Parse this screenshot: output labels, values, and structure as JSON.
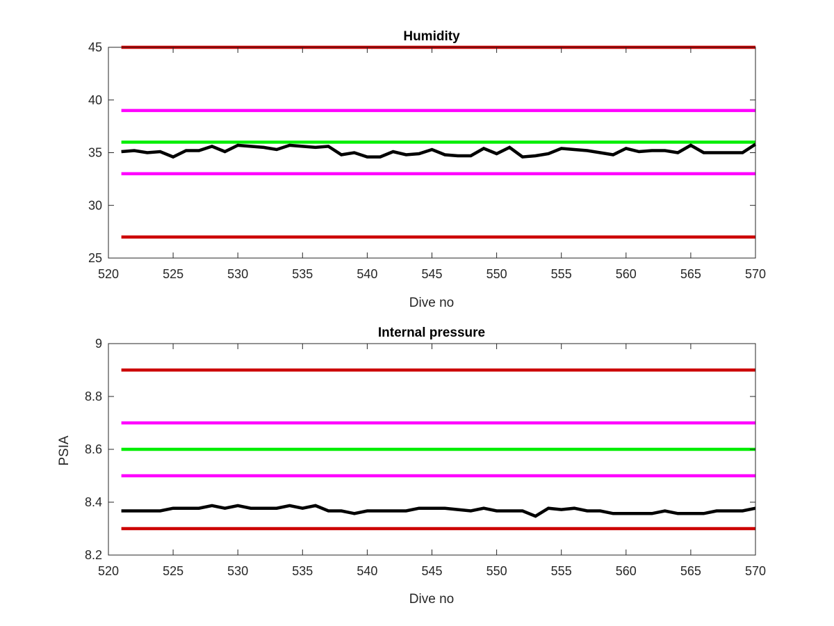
{
  "chart_data": [
    {
      "type": "line",
      "title": "Humidity",
      "xlabel": "Dive no",
      "ylabel": "",
      "xlim": [
        520,
        570
      ],
      "ylim": [
        25,
        45
      ],
      "xticks": [
        520,
        525,
        530,
        535,
        540,
        545,
        550,
        555,
        560,
        565,
        570
      ],
      "yticks": [
        25,
        30,
        35,
        40,
        45
      ],
      "grid": false,
      "legend": "none",
      "reference_lines": [
        {
          "y": 45,
          "color": "#cc0000"
        },
        {
          "y": 39,
          "color": "#ff00ff"
        },
        {
          "y": 36,
          "color": "#00ee00"
        },
        {
          "y": 33,
          "color": "#ff00ff"
        },
        {
          "y": 27,
          "color": "#cc0000"
        }
      ],
      "series": [
        {
          "color": "#000000",
          "x": [
            521,
            522,
            523,
            524,
            525,
            526,
            527,
            528,
            529,
            530,
            531,
            532,
            533,
            534,
            535,
            536,
            537,
            538,
            539,
            540,
            541,
            542,
            543,
            544,
            545,
            546,
            547,
            548,
            549,
            550,
            551,
            552,
            553,
            554,
            555,
            556,
            557,
            558,
            559,
            560,
            561,
            562,
            563,
            564,
            565,
            566,
            567,
            568,
            569,
            570
          ],
          "values": [
            35.1,
            35.2,
            35.0,
            35.1,
            34.6,
            35.2,
            35.2,
            35.6,
            35.1,
            35.7,
            35.6,
            35.5,
            35.3,
            35.7,
            35.6,
            35.5,
            35.6,
            34.8,
            35.0,
            34.6,
            34.6,
            35.1,
            34.8,
            34.9,
            35.3,
            34.8,
            34.7,
            34.7,
            35.4,
            34.9,
            35.5,
            34.6,
            34.7,
            34.9,
            35.4,
            35.3,
            35.2,
            35.0,
            34.8,
            35.4,
            35.1,
            35.2,
            35.2,
            35.0,
            35.7,
            35.0,
            35.0,
            35.0,
            35.0,
            35.8
          ]
        }
      ]
    },
    {
      "type": "line",
      "title": "Internal pressure",
      "xlabel": "Dive no",
      "ylabel": "PSIA",
      "xlim": [
        520,
        570
      ],
      "ylim": [
        8.2,
        9
      ],
      "xticks": [
        520,
        525,
        530,
        535,
        540,
        545,
        550,
        555,
        560,
        565,
        570
      ],
      "yticks": [
        8.2,
        8.4,
        8.6,
        8.8,
        9
      ],
      "grid": false,
      "legend": "none",
      "reference_lines": [
        {
          "y": 8.9,
          "color": "#cc0000"
        },
        {
          "y": 8.7,
          "color": "#ff00ff"
        },
        {
          "y": 8.6,
          "color": "#00ee00"
        },
        {
          "y": 8.5,
          "color": "#ff00ff"
        },
        {
          "y": 8.3,
          "color": "#cc0000"
        }
      ],
      "series": [
        {
          "color": "#000000",
          "x": [
            521,
            522,
            523,
            524,
            525,
            526,
            527,
            528,
            529,
            530,
            531,
            532,
            533,
            534,
            535,
            536,
            537,
            538,
            539,
            540,
            541,
            542,
            543,
            544,
            545,
            546,
            547,
            548,
            549,
            550,
            551,
            552,
            553,
            554,
            555,
            556,
            557,
            558,
            559,
            560,
            561,
            562,
            563,
            564,
            565,
            566,
            567,
            568,
            569,
            570
          ],
          "values": [
            8.367,
            8.367,
            8.367,
            8.367,
            8.377,
            8.377,
            8.377,
            8.387,
            8.377,
            8.387,
            8.377,
            8.377,
            8.377,
            8.387,
            8.377,
            8.387,
            8.367,
            8.367,
            8.357,
            8.367,
            8.367,
            8.367,
            8.367,
            8.377,
            8.377,
            8.377,
            8.372,
            8.367,
            8.377,
            8.367,
            8.367,
            8.367,
            8.347,
            8.377,
            8.372,
            8.377,
            8.367,
            8.367,
            8.357,
            8.357,
            8.357,
            8.357,
            8.367,
            8.357,
            8.357,
            8.357,
            8.367,
            8.367,
            8.367,
            8.377
          ]
        }
      ]
    }
  ]
}
